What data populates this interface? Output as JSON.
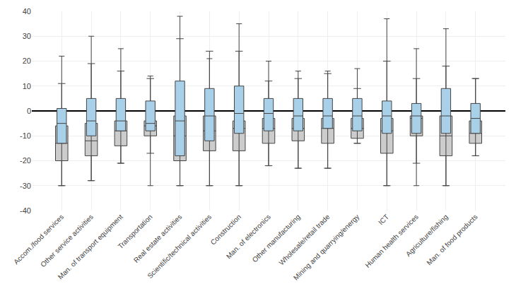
{
  "chart_data": {
    "type": "box",
    "categories": [
      "Accom./food services",
      "Other service activities",
      "Man. of transport equipment",
      "Transportation",
      "Real estate activities",
      "Scientific/technical activities",
      "Construction",
      "Man. of electronics",
      "Other manufacturing",
      "Wholesale/retail trade",
      "Mining and quarrying/energy",
      "ICT",
      "Human health services",
      "Agriculture/fishing",
      "Man. of food products"
    ],
    "series": [
      {
        "color": "#cccccc",
        "whisker_low": [
          -30,
          -28,
          -21,
          -17,
          -30,
          -30,
          -30,
          -22,
          -23,
          -23,
          -13,
          -30,
          -21,
          -30,
          -18
        ],
        "q1": [
          -20,
          -18,
          -14,
          -10,
          -20,
          -16,
          -16,
          -13,
          -12,
          -13,
          -11,
          -17,
          -10,
          -18,
          -13
        ],
        "median": [
          -13,
          -12,
          -8,
          -6,
          -10,
          -8,
          -7,
          -7,
          -7,
          -7,
          -7,
          -8,
          -3,
          -10,
          -9
        ],
        "q3": [
          -6,
          -5,
          -4,
          -4,
          -2,
          -2,
          -4,
          -3,
          -3,
          -3,
          -3,
          -3,
          -2,
          -2,
          -4
        ],
        "whisker_high": [
          11,
          19,
          16,
          13,
          29,
          24,
          24,
          12,
          13,
          15,
          9,
          20,
          13,
          18,
          13
        ]
      },
      {
        "color": "#a8d0e8",
        "whisker_low": [
          -30,
          -28,
          -21,
          -30,
          -30,
          -30,
          -30,
          -22,
          -23,
          -23,
          -13,
          -30,
          -30,
          -30,
          -18
        ],
        "q1": [
          -13,
          -10,
          -8,
          -8,
          -18,
          -12,
          -9,
          -8,
          -8,
          -7,
          -8,
          -9,
          -9,
          -9,
          -9
        ],
        "median": [
          -5,
          -4,
          -4,
          -5,
          -4,
          -2,
          -1,
          -1,
          -2,
          -2,
          -2,
          -2,
          -2,
          -2,
          -3
        ],
        "q3": [
          1,
          5,
          5,
          4,
          12,
          9,
          10,
          5,
          5,
          5,
          5,
          4,
          3,
          9,
          3
        ],
        "whisker_high": [
          22,
          30,
          25,
          14,
          38,
          21,
          35,
          20,
          16,
          16,
          17,
          37,
          25,
          33,
          13
        ]
      }
    ],
    "ylim": [
      -40,
      40
    ],
    "yticks": [
      -40,
      -30,
      -20,
      -10,
      0,
      10,
      20,
      30,
      40
    ],
    "grid": true
  }
}
